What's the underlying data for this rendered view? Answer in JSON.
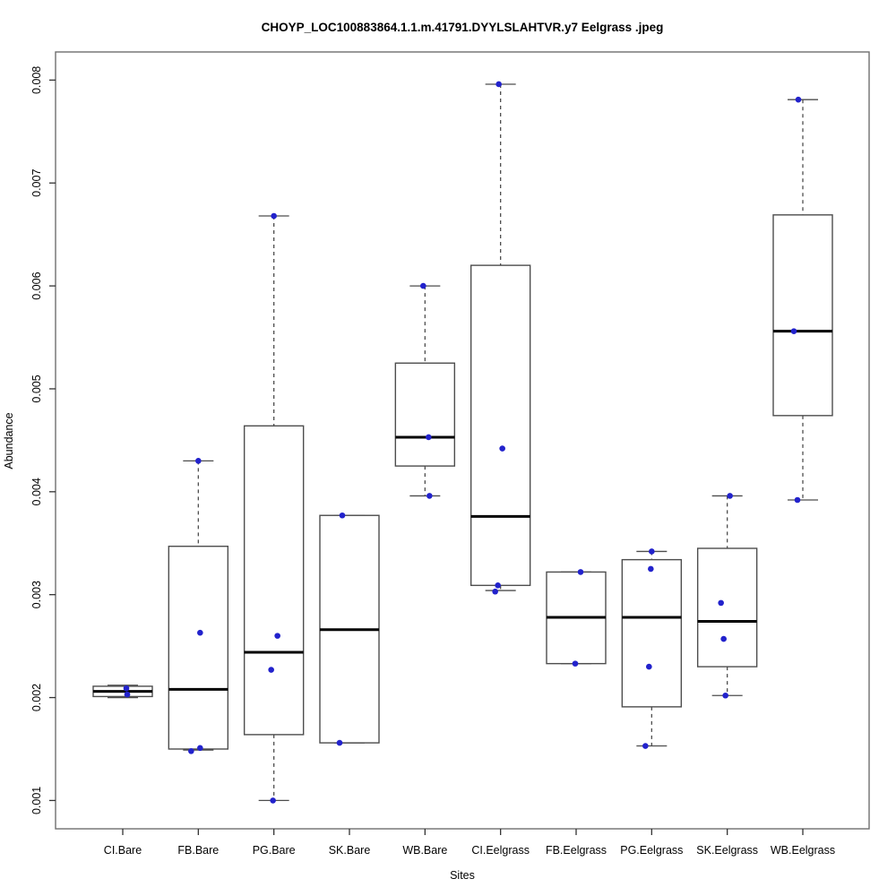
{
  "chart_data": {
    "type": "boxplot",
    "title": "CHOYP_LOC100883864.1.1.m.41791.DYYLSLAHTVR.y7 Eelgrass .jpeg",
    "xlabel": "Sites",
    "ylabel": "Abundance",
    "ylim": [
      0.00072,
      0.00828
    ],
    "y_ticks": [
      "0.001",
      "0.002",
      "0.003",
      "0.004",
      "0.005",
      "0.006",
      "0.007",
      "0.008"
    ],
    "grid": false,
    "legend_position": "none",
    "categories": [
      "CI.Bare",
      "FB.Bare",
      "PG.Bare",
      "SK.Bare",
      "WB.Bare",
      "CI.Eelgrass",
      "FB.Eelgrass",
      "PG.Eelgrass",
      "SK.Eelgrass",
      "WB.Eelgrass"
    ],
    "groups": [
      {
        "label": "CI.Bare",
        "min": 0.002,
        "q1": 0.00201,
        "median": 0.00206,
        "q3": 0.00211,
        "max": 0.00212,
        "points": [
          {
            "v": 0.00209,
            "dx": 4
          },
          {
            "v": 0.00203,
            "dx": 5
          }
        ]
      },
      {
        "label": "FB.Bare",
        "min": 0.00149,
        "q1": 0.0015,
        "median": 0.00208,
        "q3": 0.00347,
        "max": 0.0043,
        "points": [
          {
            "v": 0.0043,
            "dx": 0
          },
          {
            "v": 0.00263,
            "dx": 2
          },
          {
            "v": 0.00148,
            "dx": -8
          },
          {
            "v": 0.00151,
            "dx": 2
          }
        ]
      },
      {
        "label": "PG.Bare",
        "min": 0.001,
        "q1": 0.00164,
        "median": 0.00244,
        "q3": 0.00464,
        "max": 0.00668,
        "points": [
          {
            "v": 0.00668,
            "dx": 0
          },
          {
            "v": 0.0026,
            "dx": 4
          },
          {
            "v": 0.00227,
            "dx": -3
          },
          {
            "v": 0.001,
            "dx": -1
          }
        ]
      },
      {
        "label": "SK.Bare",
        "min": 0.00156,
        "q1": 0.00156,
        "median": 0.00266,
        "q3": 0.00377,
        "max": 0.00377,
        "points": [
          {
            "v": 0.00377,
            "dx": -8
          },
          {
            "v": 0.00156,
            "dx": -11
          }
        ]
      },
      {
        "label": "WB.Bare",
        "min": 0.00396,
        "q1": 0.00425,
        "median": 0.00453,
        "q3": 0.00525,
        "max": 0.006,
        "points": [
          {
            "v": 0.006,
            "dx": -2
          },
          {
            "v": 0.00453,
            "dx": 4
          },
          {
            "v": 0.00396,
            "dx": 5
          }
        ]
      },
      {
        "label": "CI.Eelgrass",
        "min": 0.00304,
        "q1": 0.00309,
        "median": 0.00376,
        "q3": 0.0062,
        "max": 0.00796,
        "points": [
          {
            "v": 0.00796,
            "dx": -2
          },
          {
            "v": 0.00442,
            "dx": 2
          },
          {
            "v": 0.00309,
            "dx": -3
          },
          {
            "v": 0.00303,
            "dx": -6
          }
        ]
      },
      {
        "label": "FB.Eelgrass",
        "min": 0.00233,
        "q1": 0.00233,
        "median": 0.00278,
        "q3": 0.00322,
        "max": 0.00322,
        "points": [
          {
            "v": 0.00322,
            "dx": 5
          },
          {
            "v": 0.00233,
            "dx": -1
          }
        ]
      },
      {
        "label": "PG.Eelgrass",
        "min": 0.00153,
        "q1": 0.00191,
        "median": 0.00278,
        "q3": 0.00334,
        "max": 0.00342,
        "points": [
          {
            "v": 0.00342,
            "dx": 0
          },
          {
            "v": 0.00325,
            "dx": -1
          },
          {
            "v": 0.0023,
            "dx": -3
          },
          {
            "v": 0.00153,
            "dx": -7
          }
        ]
      },
      {
        "label": "SK.Eelgrass",
        "min": 0.00202,
        "q1": 0.0023,
        "median": 0.00274,
        "q3": 0.00345,
        "max": 0.00396,
        "points": [
          {
            "v": 0.00396,
            "dx": 3
          },
          {
            "v": 0.00292,
            "dx": -7
          },
          {
            "v": 0.00257,
            "dx": -4
          },
          {
            "v": 0.00202,
            "dx": -2
          }
        ]
      },
      {
        "label": "WB.Eelgrass",
        "min": 0.00392,
        "q1": 0.00474,
        "median": 0.00556,
        "q3": 0.00669,
        "max": 0.00781,
        "points": [
          {
            "v": 0.00781,
            "dx": -5
          },
          {
            "v": 0.00556,
            "dx": -10
          },
          {
            "v": 0.00392,
            "dx": -6
          }
        ]
      }
    ],
    "colors": {
      "point": "#2222cc",
      "box_border": "#4d4d4d",
      "median": "#000000",
      "whisker": "#4d4d4d",
      "frame": "#6e6e6e",
      "tick": "#333333",
      "box_fill": "#ffffff"
    }
  }
}
